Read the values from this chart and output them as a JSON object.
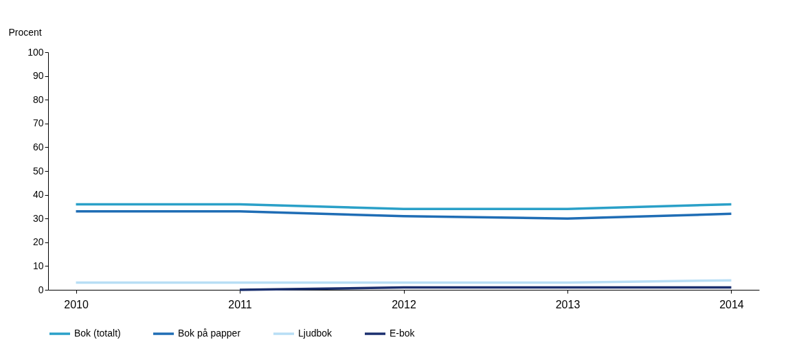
{
  "chart_data": {
    "type": "line",
    "ylabel": "Procent",
    "categories": [
      "2010",
      "2011",
      "2012",
      "2013",
      "2014"
    ],
    "ylim": [
      0,
      100
    ],
    "yticks": [
      0,
      10,
      20,
      30,
      40,
      50,
      60,
      70,
      80,
      90,
      100
    ],
    "grid": false,
    "legend": "bottom",
    "line_style": "solid",
    "marker": "none",
    "series": [
      {
        "name": "Bok (totalt)",
        "color": "#2aa0c8",
        "values": [
          36,
          36,
          34,
          34,
          36
        ]
      },
      {
        "name": "Bok på papper",
        "color": "#1f6db5",
        "values": [
          33,
          33,
          31,
          30,
          32
        ]
      },
      {
        "name": "Ljudbok",
        "color": "#b8def5",
        "values": [
          3,
          3,
          3,
          3,
          4
        ]
      },
      {
        "name": "E-bok",
        "color": "#1a2f6e",
        "values": [
          null,
          0,
          1,
          1,
          1
        ]
      }
    ]
  }
}
